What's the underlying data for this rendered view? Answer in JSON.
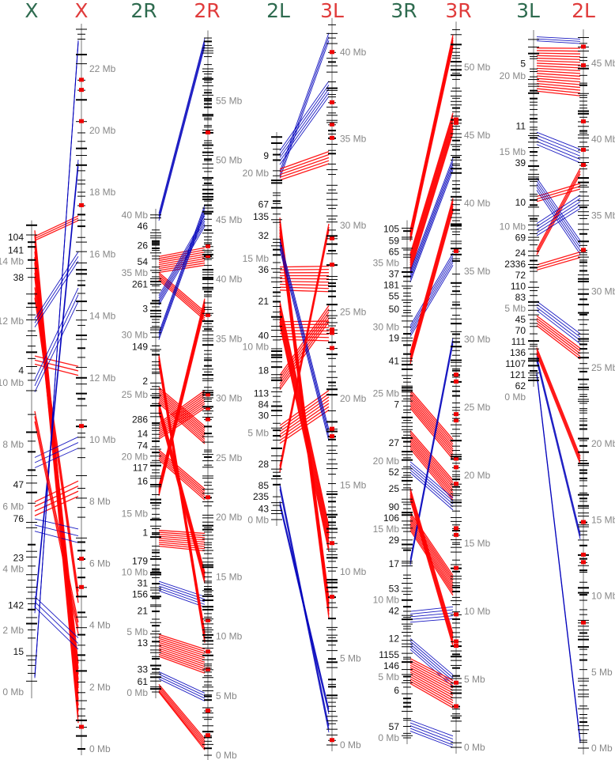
{
  "colors": {
    "same_orientation": "#ff0000",
    "inverted": "#0000bb",
    "left_title": "#2e6b4f",
    "right_title": "#e03b3b",
    "axis": "#888888",
    "marker": "#000000"
  },
  "unit": "Mb",
  "pairs": [
    {
      "left": {
        "name": "X",
        "length": 15.1,
        "ticks": [
          0,
          2,
          4,
          6,
          8,
          10,
          12,
          14
        ],
        "contigs": [
          [
            "104",
            14.7
          ],
          [
            "141",
            14.2
          ],
          [
            "38",
            13.4
          ],
          [
            "4",
            10.4
          ],
          [
            "47",
            6.7
          ],
          [
            "76",
            5.6
          ],
          [
            "23",
            4.3
          ],
          [
            "142",
            2.8
          ],
          [
            "15",
            1.3
          ]
        ]
      },
      "right": {
        "name": "X",
        "length": 23.3,
        "ticks": [
          0,
          2,
          4,
          6,
          8,
          10,
          12,
          14,
          16,
          18,
          20,
          22
        ]
      },
      "links": [
        [
          14.5,
          1.5,
          "r",
          1.2
        ],
        [
          13.8,
          2.5,
          "r",
          0.8
        ],
        [
          10.8,
          12.3,
          "r",
          0.4
        ],
        [
          14.7,
          17.2,
          "r",
          0.2
        ],
        [
          6,
          8.5,
          "r",
          0.6
        ],
        [
          13,
          5,
          "r",
          0.5
        ],
        [
          10,
          14.8,
          "b",
          0.6
        ],
        [
          7.5,
          10,
          "b",
          0.5
        ],
        [
          5.5,
          7,
          "b",
          0.6
        ],
        [
          3,
          3.5,
          "b",
          0.5
        ],
        [
          2.7,
          19,
          "b",
          0.3
        ],
        [
          0.5,
          22.9,
          "b",
          0.1
        ],
        [
          12,
          16,
          "b",
          0.4
        ],
        [
          9,
          4,
          "r",
          0.5
        ]
      ]
    },
    {
      "left": {
        "name": "2R",
        "length": 40.2,
        "ticks": [
          0,
          5,
          10,
          15,
          20,
          25,
          30,
          35,
          40
        ],
        "contigs": [
          [
            "46",
            39.2
          ],
          [
            "26",
            37.5
          ],
          [
            "54",
            36.0
          ],
          [
            "261",
            34.6
          ],
          [
            "3",
            32.2
          ],
          [
            "149",
            29.0
          ],
          [
            "2",
            26.1
          ],
          [
            "286",
            22.9
          ],
          [
            "14",
            21.7
          ],
          [
            "74",
            20.2
          ],
          [
            "117",
            19.1
          ],
          [
            "16",
            17.7
          ],
          [
            "1",
            13.4
          ],
          [
            "179",
            10.8
          ],
          [
            "31",
            9.3
          ],
          [
            "156",
            8.3
          ],
          [
            "21",
            6.8
          ],
          [
            "13",
            4.2
          ],
          [
            "33",
            1.9
          ],
          [
            "61",
            0.8
          ]
        ]
      },
      "right": {
        "name": "2R",
        "length": 60.5,
        "ticks": [
          0,
          5,
          10,
          15,
          20,
          25,
          30,
          35,
          40,
          45,
          50,
          55
        ]
      },
      "links": [
        [
          40,
          60,
          "b",
          0.8
        ],
        [
          36,
          42,
          "r",
          1.5
        ],
        [
          35,
          37,
          "r",
          0.8
        ],
        [
          33,
          45,
          "b",
          1
        ],
        [
          25,
          27,
          "r",
          1.5
        ],
        [
          22,
          30,
          "r",
          1.5
        ],
        [
          20,
          22,
          "r",
          1
        ],
        [
          13,
          18,
          "r",
          1.5
        ],
        [
          4,
          8,
          "r",
          2
        ],
        [
          0.3,
          1,
          "r",
          1
        ],
        [
          9,
          13,
          "b",
          1
        ],
        [
          1.5,
          5,
          "b",
          0.8
        ],
        [
          28,
          10,
          "r",
          1
        ],
        [
          30,
          46,
          "b",
          0.8
        ],
        [
          17,
          38,
          "r",
          1
        ],
        [
          24,
          15,
          "r",
          1
        ]
      ]
    },
    {
      "left": {
        "name": "2L",
        "length": 22.1,
        "ticks": [
          0,
          5,
          10,
          15,
          20
        ],
        "contigs": [
          [
            "9",
            21.0
          ],
          [
            "67",
            18.2
          ],
          [
            "135",
            17.5
          ],
          [
            "32",
            16.4
          ],
          [
            "36",
            14.5
          ],
          [
            "21",
            12.6
          ],
          [
            "40",
            10.6
          ],
          [
            "18",
            8.6
          ],
          [
            "113",
            7.2
          ],
          [
            "84",
            6.6
          ],
          [
            "30",
            6.1
          ],
          [
            "28",
            3.2
          ],
          [
            "85",
            1.9
          ],
          [
            "235",
            1.4
          ],
          [
            "43",
            0.6
          ]
        ]
      },
      "right": {
        "name": "3L",
        "length": 41.7,
        "ticks": [
          0,
          5,
          10,
          15,
          20,
          25,
          30,
          35,
          40
        ]
      },
      "links": [
        [
          21,
          38,
          "b",
          1
        ],
        [
          20,
          41,
          "b",
          0.6
        ],
        [
          17,
          8,
          "r",
          1.2
        ],
        [
          14,
          27,
          "r",
          1.5
        ],
        [
          11,
          24,
          "r",
          1.2
        ],
        [
          8,
          25,
          "r",
          1
        ],
        [
          5,
          20,
          "r",
          1.2
        ],
        [
          2,
          1,
          "b",
          0.5
        ],
        [
          1,
          2,
          "b",
          0.4
        ],
        [
          20,
          34,
          "r",
          0.8
        ],
        [
          16,
          18,
          "b",
          0.8
        ],
        [
          3,
          30,
          "r",
          0.5
        ],
        [
          12,
          12,
          "r",
          1.5
        ]
      ]
    },
    {
      "left": {
        "name": "3R",
        "length": 37.7,
        "ticks": [
          0,
          5,
          10,
          15,
          20,
          25,
          30,
          35
        ],
        "contigs": [
          [
            "105",
            37.4
          ],
          [
            "59",
            36.5
          ],
          [
            "65",
            35.6
          ],
          [
            "37",
            34.2
          ],
          [
            "181",
            33.2
          ],
          [
            "55",
            32.6
          ],
          [
            "50",
            31.5
          ],
          [
            "19",
            29.6
          ],
          [
            "41",
            27.7
          ],
          [
            "7",
            24.8
          ],
          [
            "27",
            21.7
          ],
          [
            "52",
            19.9
          ],
          [
            "25",
            18.3
          ],
          [
            "90",
            16.9
          ],
          [
            "106",
            16.2
          ],
          [
            "29",
            14.9
          ],
          [
            "17",
            12.8
          ],
          [
            "53",
            10.9
          ],
          [
            "42",
            9.5
          ],
          [
            "12",
            7.3
          ],
          [
            "1155",
            5.8
          ],
          [
            "146",
            5.1
          ],
          [
            "6",
            3.5
          ],
          [
            "57",
            0.8
          ]
        ]
      },
      "right": {
        "name": "3R",
        "length": 53.0,
        "ticks": [
          0,
          5,
          10,
          15,
          20,
          25,
          30,
          35,
          40,
          45,
          50
        ]
      },
      "links": [
        [
          37,
          52,
          "r",
          1
        ],
        [
          35,
          46,
          "r",
          1.5
        ],
        [
          34,
          43,
          "b",
          1
        ],
        [
          30,
          36,
          "b",
          1
        ],
        [
          25,
          22,
          "r",
          1.5
        ],
        [
          22,
          19,
          "r",
          1.5
        ],
        [
          20,
          18,
          "b",
          1
        ],
        [
          16,
          12,
          "r",
          1.5
        ],
        [
          9,
          10,
          "b",
          1
        ],
        [
          7,
          5,
          "b",
          1
        ],
        [
          5,
          4,
          "r",
          2
        ],
        [
          1,
          0.5,
          "b",
          1
        ],
        [
          28,
          40,
          "r",
          1
        ],
        [
          13,
          30,
          "b",
          0.6
        ],
        [
          18,
          8,
          "r",
          1
        ]
      ]
    },
    {
      "left": {
        "name": "3L",
        "length": 22.7,
        "ticks": [
          0,
          5,
          10,
          15,
          20
        ],
        "contigs": [
          [
            "5",
            20.8
          ],
          [
            "11",
            16.7
          ],
          [
            "39",
            14.3
          ],
          [
            "10",
            11.7
          ],
          [
            "69",
            9.5
          ],
          [
            "24",
            7.9
          ],
          [
            "2336",
            6.8
          ],
          [
            "72",
            6.25
          ],
          [
            "110",
            5.6
          ],
          [
            "83",
            5.05
          ],
          [
            "45",
            4.0
          ],
          [
            "70",
            3.0
          ],
          [
            "111",
            2.5
          ],
          [
            "136",
            2.0
          ],
          [
            "1107",
            1.5
          ],
          [
            "121",
            0.9
          ],
          [
            "62",
            0.5
          ]
        ]
      },
      "right": {
        "name": "2L",
        "length": 46.9,
        "ticks": [
          0,
          5,
          10,
          15,
          20,
          25,
          30,
          35,
          40,
          45
        ]
      },
      "links": [
        [
          20.5,
          44.5,
          "r",
          3
        ],
        [
          22.5,
          46.5,
          "b",
          0.4
        ],
        [
          16,
          39,
          "b",
          1
        ],
        [
          12,
          37,
          "r",
          0.5
        ],
        [
          13,
          33,
          "b",
          1
        ],
        [
          7.5,
          32.5,
          "r",
          0.5
        ],
        [
          5,
          27,
          "b",
          0.8
        ],
        [
          4,
          26,
          "r",
          0.8
        ],
        [
          0.5,
          0.5,
          "b",
          0.3
        ],
        [
          2,
          19,
          "r",
          0.6
        ],
        [
          1.5,
          14,
          "b",
          0.5
        ],
        [
          8.5,
          38,
          "r",
          0.5
        ],
        [
          10,
          36,
          "b",
          1
        ]
      ]
    }
  ]
}
